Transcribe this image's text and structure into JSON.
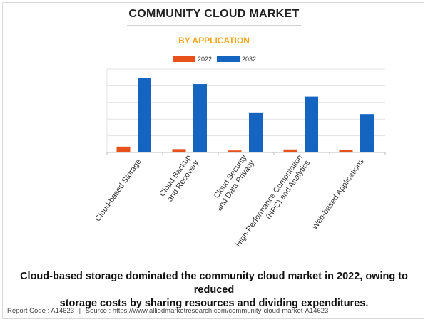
{
  "header": {
    "title": "COMMUNITY CLOUD MARKET",
    "subtitle": "BY APPLICATION"
  },
  "caption": {
    "line1": "Cloud-based storage dominated the community cloud market in 2022, owing to reduced",
    "line2": "storage costs by sharing resources and dividing expenditures."
  },
  "footer": {
    "report_code": "Report Code : A14623",
    "separator": "|",
    "source": "Source : https://www.alliedmarketresearch.com/community-cloud-market-A14623"
  },
  "colors": {
    "series_2022": "#e8501c",
    "series_2032": "#1565c0",
    "title_accent": "#f5a623",
    "grid": "#e3e3e3"
  },
  "chart_data": {
    "type": "bar",
    "title": "COMMUNITY CLOUD MARKET",
    "subtitle": "BY APPLICATION",
    "xlabel": "",
    "ylabel": "",
    "grid": true,
    "legend_position": "top-center",
    "ylim": [
      0,
      5
    ],
    "categories": [
      [
        "Cloud-based Storage"
      ],
      [
        "Cloud Backup",
        "and Recovery"
      ],
      [
        "Cloud Security",
        "and Data Privacy"
      ],
      [
        "High-Performance Computation",
        "(HPC) and Analytics"
      ],
      [
        "Web-based Applications"
      ]
    ],
    "series": [
      {
        "name": "2022",
        "color": "#e8501c",
        "values": [
          0.35,
          0.2,
          0.12,
          0.18,
          0.15
        ]
      },
      {
        "name": "2032",
        "color": "#1565c0",
        "values": [
          4.45,
          4.1,
          2.4,
          3.35,
          2.3
        ]
      }
    ]
  }
}
